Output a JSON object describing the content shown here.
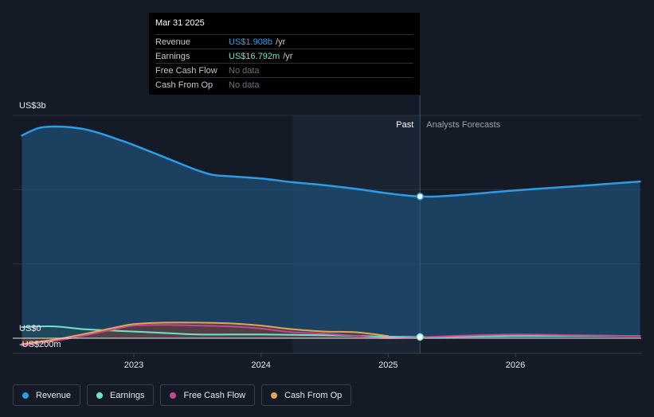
{
  "chart_data": {
    "type": "area",
    "y_unit": "US$ billions",
    "ylim": [
      -0.2,
      3.0
    ],
    "y_axis_labels": [
      "US$3b",
      "US$0",
      "-US$200m"
    ],
    "x_ticks": [
      {
        "label": "2023",
        "x": 2023.0
      },
      {
        "label": "2024",
        "x": 2024.0
      },
      {
        "label": "2025",
        "x": 2025.0
      },
      {
        "label": "2026",
        "x": 2026.0
      }
    ],
    "past_label": "Past",
    "forecast_label": "Analysts Forecasts",
    "past_start": 2024.25,
    "past_end": 2025.25,
    "series": [
      {
        "name": "Revenue",
        "color": "#2e9be6",
        "points": [
          [
            2022.12,
            2.73
          ],
          [
            2022.25,
            2.83
          ],
          [
            2022.37,
            2.85
          ],
          [
            2022.5,
            2.84
          ],
          [
            2022.62,
            2.81
          ],
          [
            2022.75,
            2.75
          ],
          [
            2022.87,
            2.68
          ],
          [
            2023.0,
            2.6
          ],
          [
            2023.25,
            2.43
          ],
          [
            2023.5,
            2.26
          ],
          [
            2023.62,
            2.2
          ],
          [
            2023.75,
            2.18
          ],
          [
            2024.0,
            2.15
          ],
          [
            2024.25,
            2.1
          ],
          [
            2024.5,
            2.06
          ],
          [
            2024.75,
            2.01
          ],
          [
            2025.0,
            1.95
          ],
          [
            2025.25,
            1.908
          ]
        ],
        "forecast_points": [
          [
            2025.25,
            1.908
          ],
          [
            2025.5,
            1.92
          ],
          [
            2026.0,
            1.99
          ],
          [
            2026.5,
            2.05
          ],
          [
            2026.98,
            2.11
          ]
        ]
      },
      {
        "name": "Earnings",
        "color": "#6fe3cb",
        "points": [
          [
            2022.12,
            0.15
          ],
          [
            2022.37,
            0.16
          ],
          [
            2022.62,
            0.12
          ],
          [
            2022.87,
            0.1
          ],
          [
            2023.25,
            0.07
          ],
          [
            2023.5,
            0.05
          ],
          [
            2023.75,
            0.05
          ],
          [
            2024.0,
            0.05
          ],
          [
            2024.5,
            0.04
          ],
          [
            2024.75,
            0.03
          ],
          [
            2025.0,
            0.02
          ],
          [
            2025.25,
            0.0168
          ]
        ],
        "forecast_points": [
          [
            2025.25,
            0.0168
          ],
          [
            2025.5,
            0.02
          ],
          [
            2026.0,
            0.03
          ],
          [
            2026.98,
            0.03
          ]
        ]
      },
      {
        "name": "Free Cash Flow",
        "color": "#c4488e",
        "points": [
          [
            2022.12,
            -0.1
          ],
          [
            2022.37,
            -0.04
          ],
          [
            2022.62,
            0.04
          ],
          [
            2022.87,
            0.13
          ],
          [
            2023.0,
            0.17
          ],
          [
            2023.25,
            0.18
          ],
          [
            2023.5,
            0.17
          ],
          [
            2023.75,
            0.16
          ],
          [
            2024.0,
            0.13
          ],
          [
            2024.25,
            0.08
          ],
          [
            2024.5,
            0.06
          ],
          [
            2024.75,
            0.03
          ],
          [
            2025.0,
            0.0
          ]
        ],
        "forecast_points": [
          [
            2025.25,
            0.0
          ],
          [
            2025.5,
            0.03
          ],
          [
            2026.0,
            0.05
          ],
          [
            2026.5,
            0.04
          ],
          [
            2026.98,
            0.03
          ]
        ]
      },
      {
        "name": "Cash From Op",
        "color": "#e8a455",
        "points": [
          [
            2022.12,
            -0.08
          ],
          [
            2022.37,
            -0.02
          ],
          [
            2022.62,
            0.06
          ],
          [
            2022.87,
            0.15
          ],
          [
            2023.0,
            0.19
          ],
          [
            2023.25,
            0.21
          ],
          [
            2023.5,
            0.21
          ],
          [
            2023.75,
            0.2
          ],
          [
            2024.0,
            0.17
          ],
          [
            2024.25,
            0.12
          ],
          [
            2024.5,
            0.09
          ],
          [
            2024.75,
            0.08
          ],
          [
            2025.0,
            0.03
          ]
        ],
        "forecast_points": []
      }
    ]
  },
  "tooltip": {
    "date": "Mar 31 2025",
    "rows": [
      {
        "key": "Revenue",
        "value": "US$1.908b",
        "unit": "/yr",
        "class": "revenue"
      },
      {
        "key": "Earnings",
        "value": "US$16.792m",
        "unit": "/yr",
        "class": "earnings"
      },
      {
        "key": "Free Cash Flow",
        "value": "No data",
        "unit": "",
        "class": "nodata"
      },
      {
        "key": "Cash From Op",
        "value": "No data",
        "unit": "",
        "class": "nodata"
      }
    ]
  },
  "legend": [
    {
      "label": "Revenue",
      "color": "#2e9be6"
    },
    {
      "label": "Earnings",
      "color": "#6fe3cb"
    },
    {
      "label": "Free Cash Flow",
      "color": "#c4488e"
    },
    {
      "label": "Cash From Op",
      "color": "#e8a455"
    }
  ]
}
